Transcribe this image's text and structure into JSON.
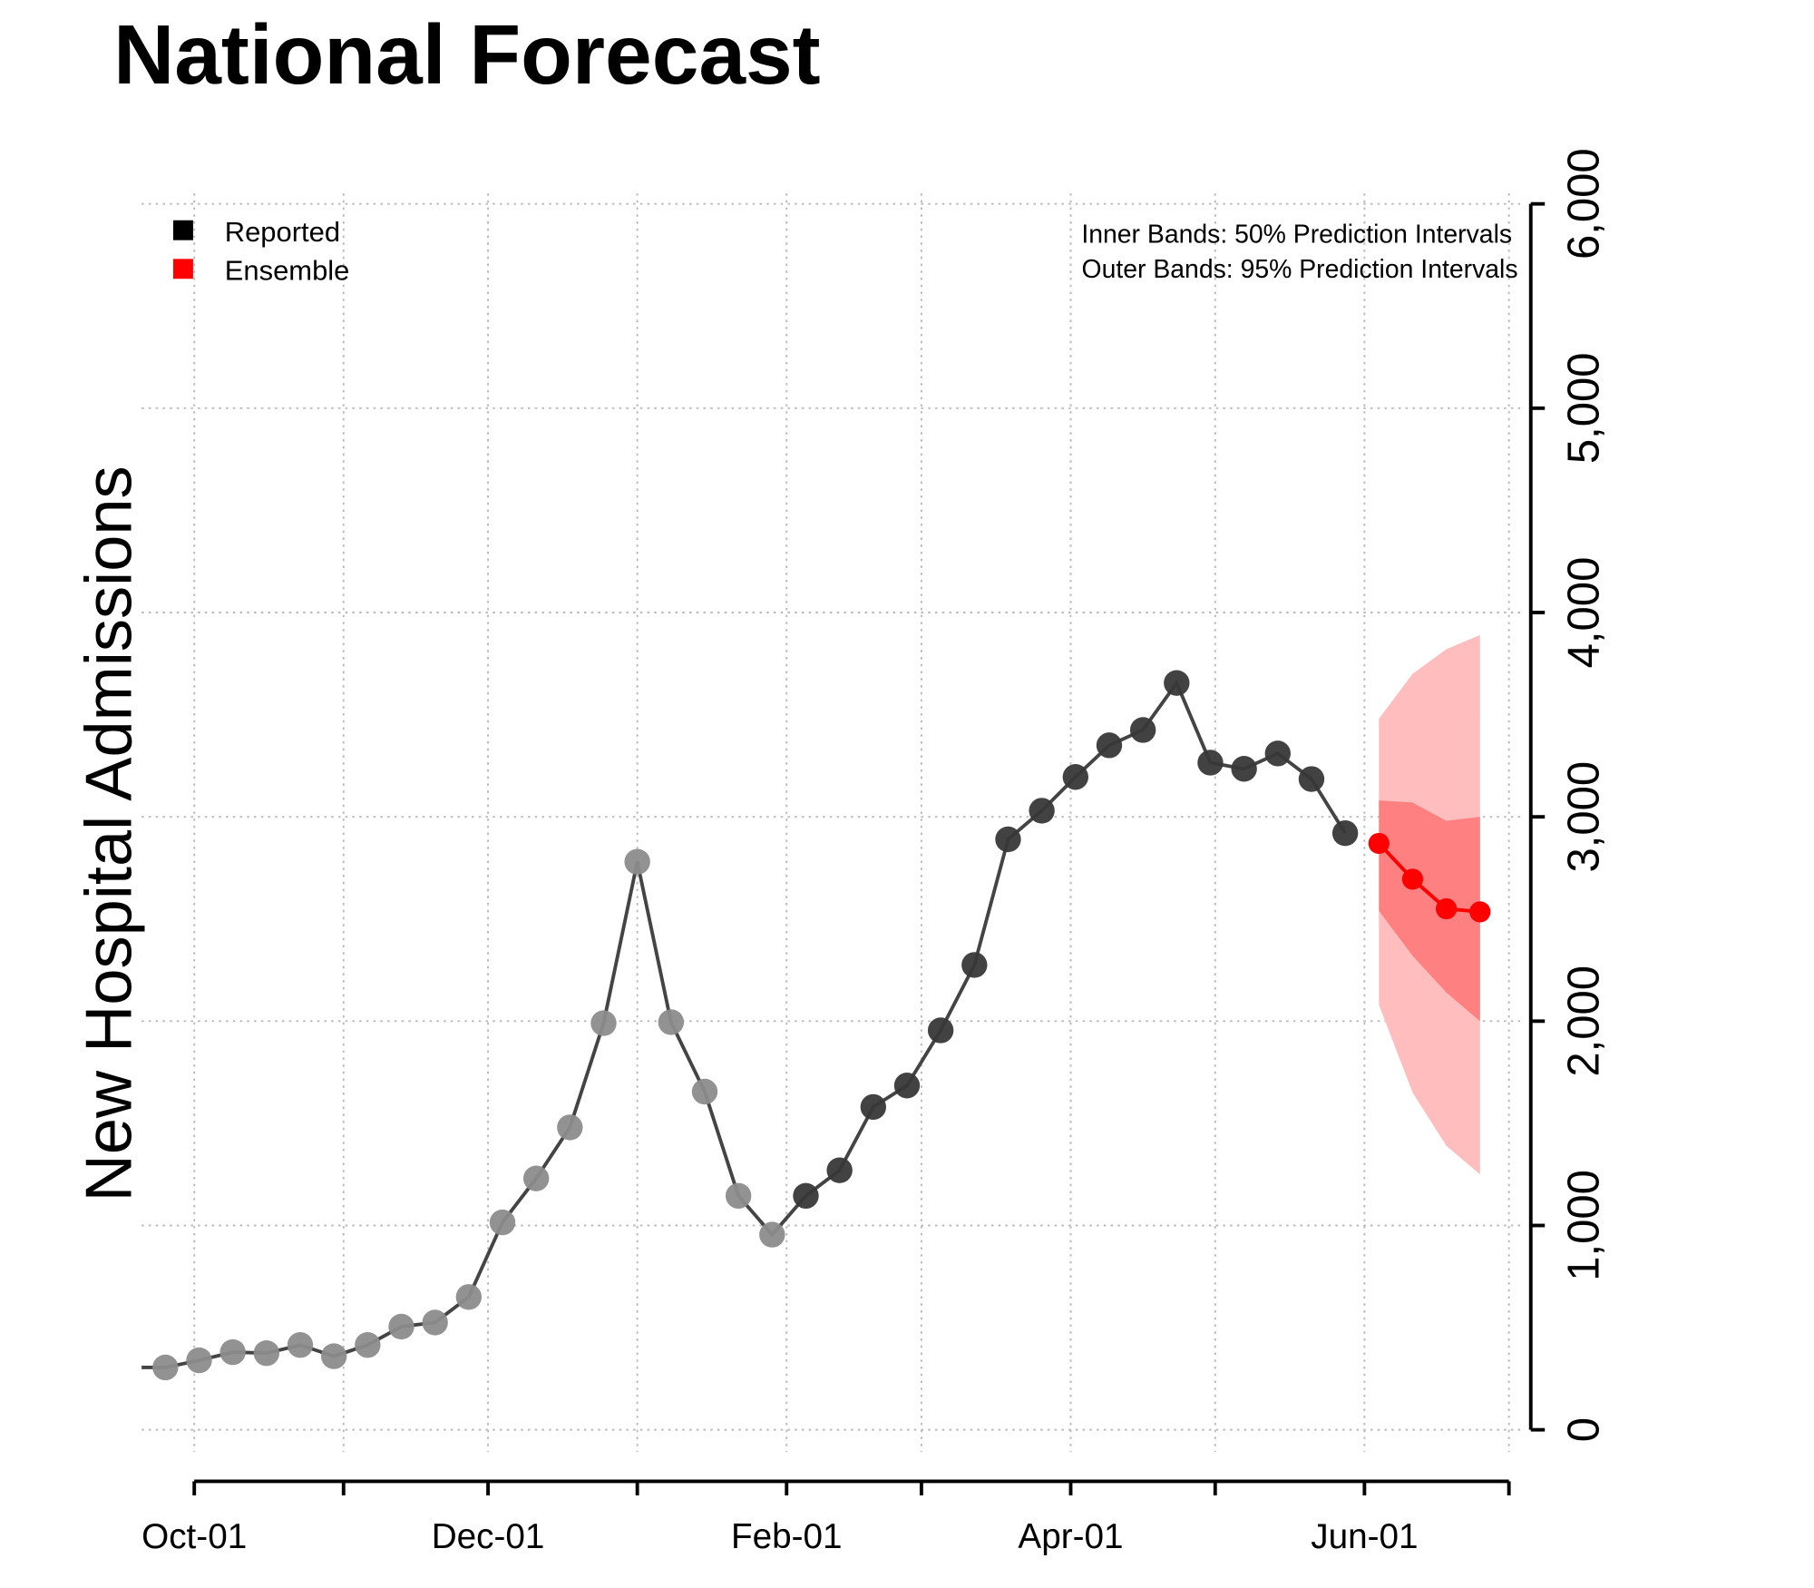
{
  "chart_data": {
    "type": "line",
    "title": "National Forecast",
    "xlabel": "",
    "ylabel": "New Hospital Admissions",
    "ylim": [
      0,
      6000
    ],
    "yticks": [
      "0",
      "1,000",
      "2,000",
      "3,000",
      "4,000",
      "5,000",
      "6,000"
    ],
    "ytick_values": [
      0,
      1000,
      2000,
      3000,
      4000,
      5000,
      6000
    ],
    "xtick_dates": [
      "Oct-01",
      "Nov-01",
      "Dec-01",
      "Jan-01",
      "Feb-01",
      "Mar-01",
      "Apr-01",
      "May-01",
      "Jun-01",
      "Jul-01"
    ],
    "xtick_labels": [
      "Oct-01",
      "",
      "Dec-01",
      "",
      "Feb-01",
      "",
      "Apr-01",
      "",
      "Jun-01",
      ""
    ],
    "grid": true,
    "legend_placement": "top-left",
    "legend": [
      {
        "label": "Reported",
        "color": "#000000"
      },
      {
        "label": "Ensemble",
        "color": "#ff0000"
      }
    ],
    "annotations": [
      "Inner Bands: 50% Prediction Intervals",
      "Outer Bands: 95% Prediction Intervals"
    ],
    "reported": {
      "name": "Reported",
      "dates": [
        "Sep-25",
        "Oct-02",
        "Oct-09",
        "Oct-16",
        "Oct-23",
        "Oct-30",
        "Nov-06",
        "Nov-13",
        "Nov-20",
        "Nov-27",
        "Dec-04",
        "Dec-11",
        "Dec-18",
        "Dec-25",
        "Jan-01",
        "Jan-08",
        "Jan-15",
        "Jan-22",
        "Jan-29",
        "Feb-05",
        "Feb-12",
        "Feb-19",
        "Feb-26",
        "Mar-05",
        "Mar-12",
        "Mar-19",
        "Mar-26",
        "Apr-02",
        "Apr-09",
        "Apr-16",
        "Apr-23",
        "Apr-30",
        "May-07",
        "May-14",
        "May-21",
        "May-28"
      ],
      "values": [
        305,
        340,
        380,
        375,
        415,
        360,
        415,
        505,
        525,
        650,
        1015,
        1230,
        1480,
        1990,
        2780,
        1995,
        1655,
        1145,
        955,
        1145,
        1270,
        1580,
        1685,
        1955,
        2275,
        2890,
        3030,
        3195,
        3350,
        3425,
        3655,
        3265,
        3235,
        3310,
        3185,
        2920
      ],
      "faded_count": 19,
      "color_faded": "#8c8c8c",
      "color": "#383838"
    },
    "ensemble": {
      "name": "Ensemble",
      "dates": [
        "Jun-04",
        "Jun-11",
        "Jun-18",
        "Jun-25"
      ],
      "values": [
        2870,
        2695,
        2550,
        2535
      ],
      "pi50_lower": [
        2540,
        2320,
        2140,
        2000
      ],
      "pi50_upper": [
        3080,
        3070,
        2980,
        3000
      ],
      "pi95_lower": [
        2080,
        1650,
        1390,
        1250
      ],
      "pi95_upper": [
        3480,
        3700,
        3820,
        3890
      ],
      "color": "#ff0000",
      "color_pi50": "#ff8080",
      "color_pi95": "#ffbdbd"
    }
  }
}
